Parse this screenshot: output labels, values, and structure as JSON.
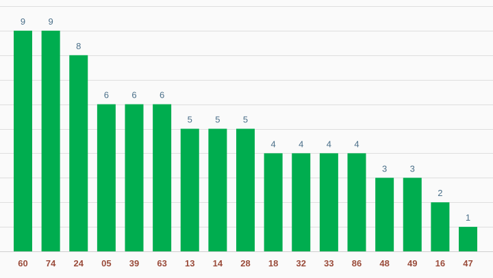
{
  "chart_data": {
    "type": "bar",
    "categories": [
      "60",
      "74",
      "24",
      "05",
      "39",
      "63",
      "13",
      "14",
      "28",
      "18",
      "32",
      "33",
      "86",
      "48",
      "49",
      "16",
      "47"
    ],
    "values": [
      9,
      9,
      8,
      6,
      6,
      6,
      5,
      5,
      5,
      4,
      4,
      4,
      4,
      3,
      3,
      2,
      1
    ],
    "data_labels": [
      "9",
      "9",
      "8",
      "6",
      "6",
      "6",
      "5",
      "5",
      "5",
      "4",
      "4",
      "4",
      "4",
      "3",
      "3",
      "2",
      "1"
    ],
    "ylim": [
      0,
      10
    ],
    "grid": true,
    "legend": "none",
    "colors": {
      "bar": "#00ad4f",
      "value_label": "#4a6f89",
      "tick_label": "#9a4b3a",
      "grid": "#dedede",
      "background": "#fafafa"
    }
  }
}
